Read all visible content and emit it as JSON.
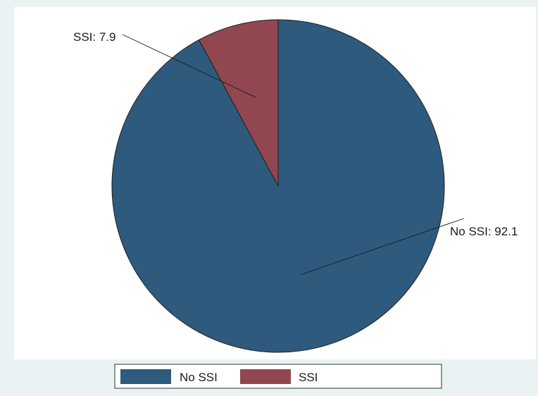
{
  "chart_data": {
    "type": "pie",
    "slices": [
      {
        "name": "No SSI",
        "value": 92.1,
        "label": "No SSI: 92.1",
        "color": "#2e5a7d"
      },
      {
        "name": "SSI",
        "value": 7.9,
        "label": "SSI: 7.9",
        "color": "#924750"
      }
    ],
    "legend": {
      "placement": "bottom",
      "items": [
        "No SSI",
        "SSI"
      ]
    }
  },
  "colors": {
    "background": "#eaf2f3",
    "plot_area": "#ffffff",
    "slice_stroke": "#1f1f1f"
  }
}
